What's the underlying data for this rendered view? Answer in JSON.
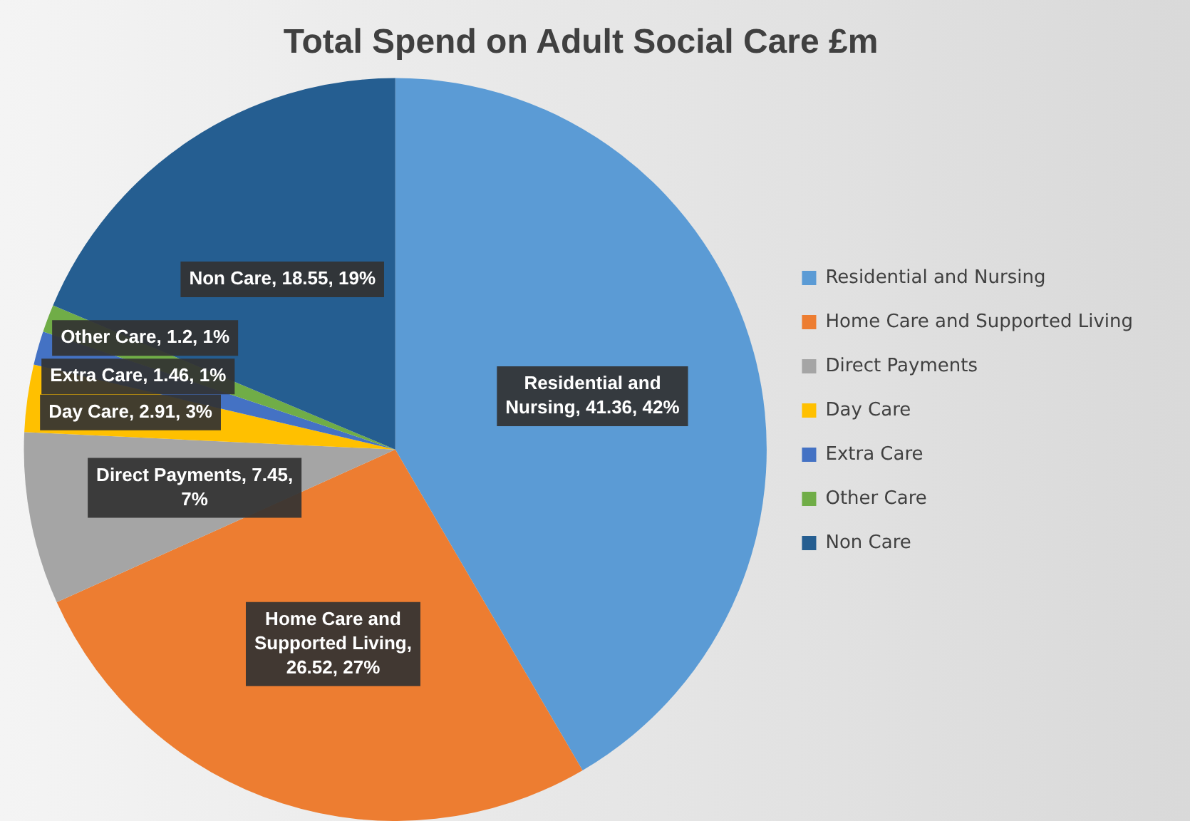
{
  "chart_data": {
    "type": "pie",
    "title": "Total Spend on Adult Social Care £m",
    "categories": [
      "Residential and Nursing",
      "Home Care and Supported Living",
      "Direct Payments",
      "Day Care",
      "Extra Care",
      "Other Care",
      "Non Care"
    ],
    "values": [
      41.36,
      26.52,
      7.45,
      2.91,
      1.46,
      1.2,
      18.55
    ],
    "colors": [
      "#5b9bd5",
      "#ed7d31",
      "#a5a5a5",
      "#ffc000",
      "#4472c4",
      "#70ad47",
      "#255e91"
    ],
    "value_labels": [
      "Residential and Nursing, 41.36, 42%",
      "Home Care and Supported Living, 26.52, 27%",
      "Direct Payments, 7.45, 7%",
      "Day Care, 2.91, 3%",
      "Extra Care, 1.46, 1%",
      "Other Care, 1.2, 1%",
      "Non Care, 18.55, 19%"
    ],
    "legend": "right"
  }
}
